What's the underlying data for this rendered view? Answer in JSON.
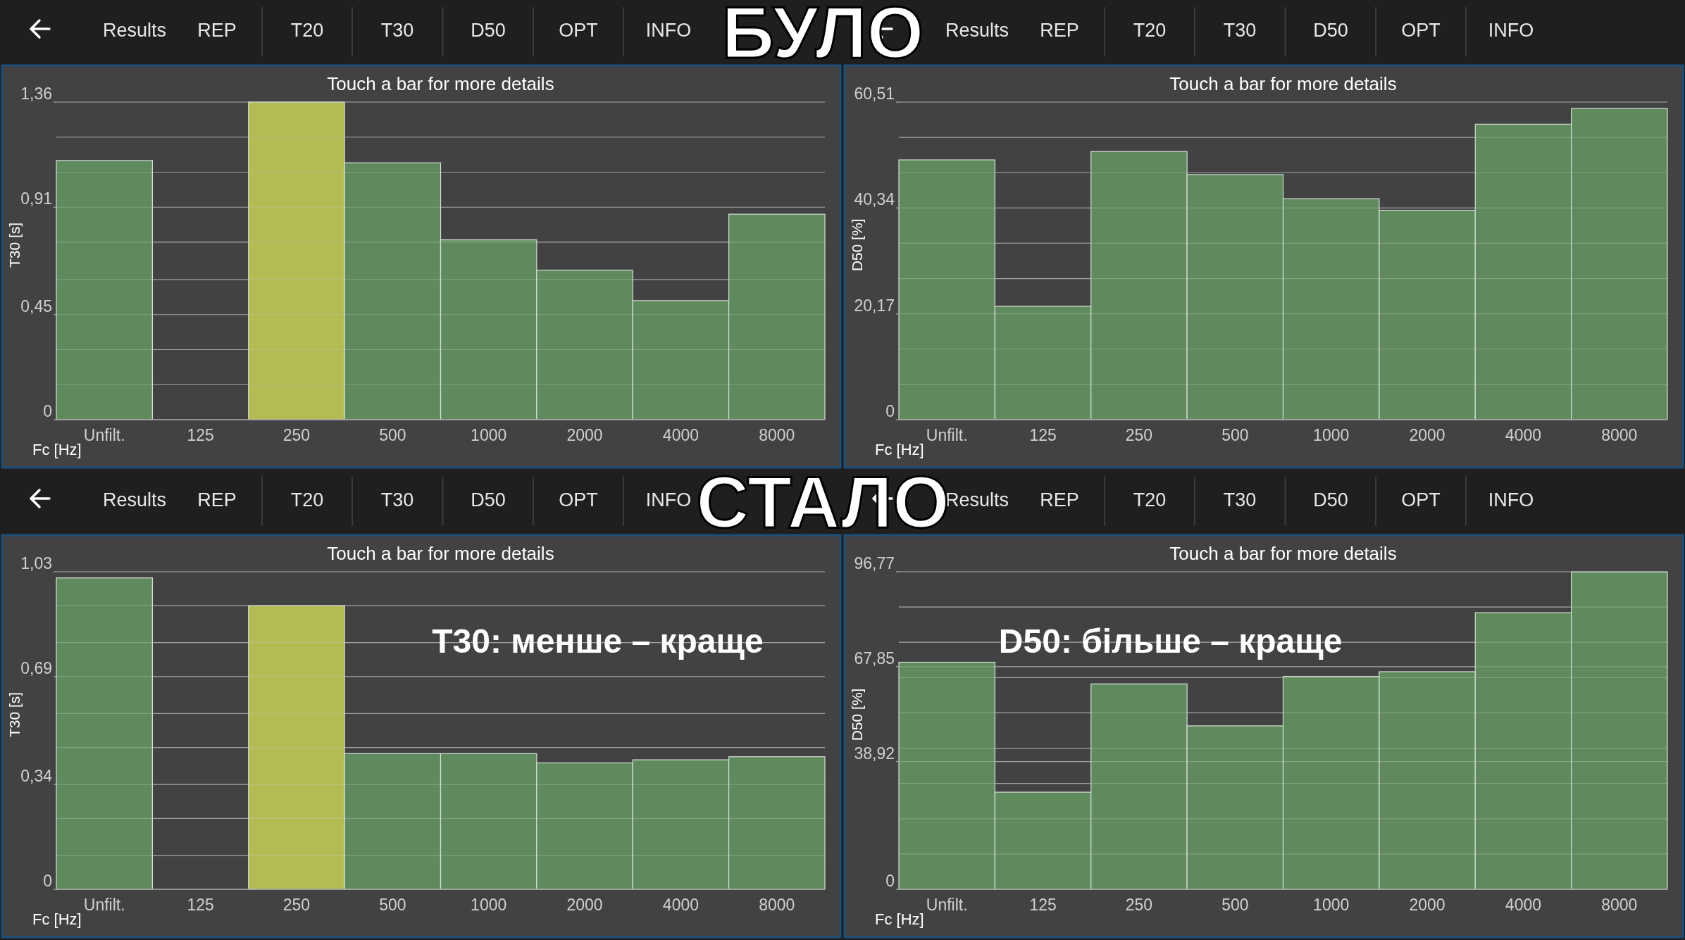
{
  "chart_data": [
    {
      "type": "bar",
      "title": "Touch a bar for more details",
      "xlabel": "Fc [Hz]",
      "ylabel": "T30 [s]",
      "categories": [
        "Unfilt.",
        "125",
        "250",
        "500",
        "1000",
        "2000",
        "4000",
        "8000"
      ],
      "values": [
        1.11,
        0,
        1.36,
        1.1,
        0.77,
        0.64,
        0.51,
        0.88
      ],
      "colors": [
        "#5e8a5e",
        "#5e8a5e",
        "#b3bb52",
        "#5e8a5e",
        "#5e8a5e",
        "#5e8a5e",
        "#5e8a5e",
        "#5e8a5e"
      ],
      "ylim": [
        0,
        1.36
      ],
      "yticks": [
        {
          "value": 0,
          "label": "0"
        },
        {
          "value": 0.15,
          "label": null
        },
        {
          "value": 0.3,
          "label": null
        },
        {
          "value": 0.45,
          "label": "0,45"
        },
        {
          "value": 0.6,
          "label": null
        },
        {
          "value": 0.76,
          "label": null
        },
        {
          "value": 0.91,
          "label": "0,91"
        },
        {
          "value": 1.06,
          "label": null
        },
        {
          "value": 1.21,
          "label": null
        },
        {
          "value": 1.36,
          "label": "1,36"
        }
      ],
      "grid": "y",
      "annotations": [
        "Results",
        "REP",
        "T20",
        "T30",
        "D50",
        "OPT",
        "INFO",
        "БУЛО"
      ]
    },
    {
      "type": "bar",
      "title": "Touch a bar for more details",
      "xlabel": "Fc [Hz]",
      "ylabel": "D50 [%]",
      "categories": [
        "Unfilt.",
        "125",
        "250",
        "500",
        "1000",
        "2000",
        "4000",
        "8000"
      ],
      "values": [
        49.5,
        21.6,
        51.1,
        46.7,
        42.1,
        39.9,
        56.3,
        59.3
      ],
      "colors": [
        "#5e8a5e",
        "#5e8a5e",
        "#5e8a5e",
        "#5e8a5e",
        "#5e8a5e",
        "#5e8a5e",
        "#5e8a5e",
        "#5e8a5e"
      ],
      "ylim": [
        0,
        60.51
      ],
      "yticks": [
        {
          "value": 0,
          "label": "0"
        },
        {
          "value": 6.72,
          "label": null
        },
        {
          "value": 13.45,
          "label": null
        },
        {
          "value": 20.17,
          "label": "20,17"
        },
        {
          "value": 26.89,
          "label": null
        },
        {
          "value": 33.62,
          "label": null
        },
        {
          "value": 40.34,
          "label": "40,34"
        },
        {
          "value": 47.06,
          "label": null
        },
        {
          "value": 53.79,
          "label": null
        },
        {
          "value": 60.51,
          "label": "60,51"
        }
      ],
      "grid": "y",
      "annotations": [
        "Results",
        "REP",
        "T20",
        "T30",
        "D50",
        "OPT",
        "INFO"
      ]
    },
    {
      "type": "bar",
      "title": "Touch a bar for more details",
      "xlabel": "Fc [Hz]",
      "ylabel": "T30 [s]",
      "categories": [
        "Unfilt.",
        "125",
        "250",
        "500",
        "1000",
        "2000",
        "4000",
        "8000"
      ],
      "values": [
        1.01,
        0,
        0.92,
        0.44,
        0.44,
        0.41,
        0.42,
        0.43
      ],
      "colors": [
        "#5e8a5e",
        "#5e8a5e",
        "#b3bb52",
        "#5e8a5e",
        "#5e8a5e",
        "#5e8a5e",
        "#5e8a5e",
        "#5e8a5e"
      ],
      "ylim": [
        0,
        1.03
      ],
      "yticks": [
        {
          "value": 0,
          "label": "0"
        },
        {
          "value": 0.11,
          "label": null
        },
        {
          "value": 0.23,
          "label": null
        },
        {
          "value": 0.34,
          "label": "0,34"
        },
        {
          "value": 0.46,
          "label": null
        },
        {
          "value": 0.57,
          "label": null
        },
        {
          "value": 0.69,
          "label": "0,69"
        },
        {
          "value": 0.8,
          "label": null
        },
        {
          "value": 0.92,
          "label": null
        },
        {
          "value": 1.03,
          "label": "1,03"
        }
      ],
      "grid": "y",
      "annotations": [
        "Results",
        "REP",
        "T20",
        "T30",
        "D50",
        "OPT",
        "INFO",
        "СТАЛО",
        "T30: менше – краще"
      ]
    },
    {
      "type": "bar",
      "title": "Touch a bar for more details",
      "xlabel": "Fc [Hz]",
      "ylabel": "D50 [%]",
      "categories": [
        "Unfilt.",
        "125",
        "250",
        "500",
        "1000",
        "2000",
        "4000",
        "8000"
      ],
      "values": [
        69.2,
        29.6,
        62.6,
        49.8,
        64.9,
        66.3,
        84.3,
        96.7
      ],
      "colors": [
        "#5e8a5e",
        "#5e8a5e",
        "#5e8a5e",
        "#5e8a5e",
        "#5e8a5e",
        "#5e8a5e",
        "#5e8a5e",
        "#5e8a5e"
      ],
      "ylim": [
        0,
        96.77
      ],
      "yticks": [
        {
          "value": 0,
          "label": "0"
        },
        {
          "value": 10.75,
          "label": null
        },
        {
          "value": 21.5,
          "label": null
        },
        {
          "value": 32.26,
          "label": null
        },
        {
          "value": 38.92,
          "label": "38,92"
        },
        {
          "value": 43.01,
          "label": null
        },
        {
          "value": 53.76,
          "label": null
        },
        {
          "value": 64.51,
          "label": null
        },
        {
          "value": 67.85,
          "label": "67,85"
        },
        {
          "value": 75.27,
          "label": null
        },
        {
          "value": 86.02,
          "label": null
        },
        {
          "value": 96.77,
          "label": "96,77"
        }
      ],
      "grid": "y",
      "annotations": [
        "Results",
        "REP",
        "T20",
        "T30",
        "D50",
        "OPT",
        "INFO",
        "D50: більше – краще"
      ]
    }
  ]
}
